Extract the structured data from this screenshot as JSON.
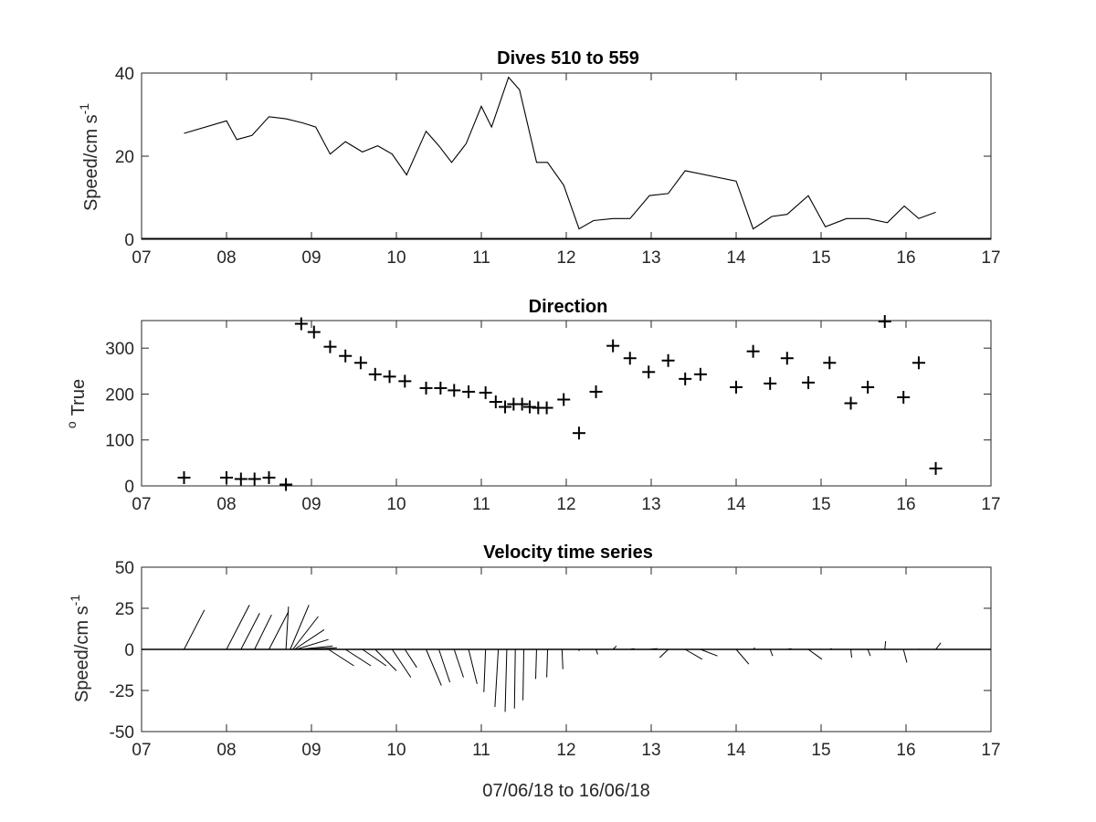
{
  "chart_data": [
    {
      "type": "line",
      "title": "Dives 510 to 559",
      "ylabel": "Speed/cm s",
      "ylabel_superscript": "-1",
      "xlabel": "",
      "xlim": [
        7,
        17
      ],
      "ylim": [
        0,
        40
      ],
      "xticks": [
        "07",
        "08",
        "09",
        "10",
        "11",
        "12",
        "13",
        "14",
        "15",
        "16",
        "17"
      ],
      "yticks": [
        "0",
        "20",
        "40"
      ],
      "grid": false,
      "series": [
        {
          "x": [
            7.5,
            8.0,
            8.12,
            8.3,
            8.5,
            8.7,
            8.9,
            9.05,
            9.22,
            9.4,
            9.6,
            9.78,
            9.95,
            10.12,
            10.35,
            10.5,
            10.65,
            10.82,
            11.0,
            11.12,
            11.32,
            11.45,
            11.65,
            11.78,
            11.97,
            12.15,
            12.32,
            12.55,
            12.75,
            12.98,
            13.2,
            13.4,
            14.0,
            14.2,
            14.42,
            14.6,
            14.85,
            15.05,
            15.3,
            15.55,
            15.78,
            15.98,
            16.15,
            16.35
          ],
          "y": [
            25.5,
            28.5,
            24,
            25,
            29.5,
            29,
            28,
            27,
            20.5,
            23.5,
            21,
            22.5,
            20.5,
            15.5,
            26,
            22.5,
            18.5,
            23,
            32,
            27,
            39,
            36,
            18.5,
            18.5,
            13,
            2.5,
            4.5,
            5,
            5,
            10.5,
            11,
            16.5,
            14,
            2.5,
            5.5,
            6,
            10.5,
            3,
            5,
            5,
            4,
            8,
            5,
            6.5
          ]
        }
      ]
    },
    {
      "type": "scatter",
      "title": "Direction",
      "ylabel": "True",
      "ylabel_superscript": "o",
      "xlabel": "",
      "xlim": [
        7,
        17
      ],
      "ylim": [
        0,
        360
      ],
      "xticks": [
        "07",
        "08",
        "09",
        "10",
        "11",
        "12",
        "13",
        "14",
        "15",
        "16",
        "17"
      ],
      "yticks": [
        "0",
        "100",
        "200",
        "300"
      ],
      "grid": false,
      "marker": "+",
      "series": [
        {
          "x": [
            7.5,
            8.0,
            8.17,
            8.33,
            8.5,
            8.7,
            8.88,
            9.03,
            9.22,
            9.4,
            9.58,
            9.75,
            9.92,
            10.1,
            10.35,
            10.52,
            10.68,
            10.85,
            11.05,
            11.17,
            11.28,
            11.38,
            11.48,
            11.57,
            11.67,
            11.77,
            11.97,
            12.15,
            12.35,
            12.55,
            12.75,
            12.97,
            13.2,
            13.4,
            13.58,
            14.0,
            14.2,
            14.4,
            14.6,
            14.85,
            15.1,
            15.35,
            15.55,
            15.75,
            15.97,
            16.15,
            16.35
          ],
          "y": [
            18,
            18,
            15,
            15,
            18,
            3,
            353,
            335,
            303,
            283,
            268,
            243,
            238,
            228,
            213,
            213,
            208,
            205,
            203,
            183,
            172,
            178,
            178,
            172,
            170,
            170,
            188,
            115,
            205,
            305,
            278,
            248,
            273,
            233,
            243,
            215,
            293,
            223,
            278,
            225,
            268,
            180,
            215,
            358,
            193,
            268,
            38
          ]
        }
      ]
    },
    {
      "type": "line",
      "subtype": "stick-vector",
      "title": "Velocity time series",
      "ylabel": "Speed/cm s",
      "ylabel_superscript": "-1",
      "xlabel": "07/06/18 to 16/06/18",
      "xlim": [
        7,
        17
      ],
      "ylim": [
        -50,
        50
      ],
      "xticks": [
        "07",
        "08",
        "09",
        "10",
        "11",
        "12",
        "13",
        "14",
        "15",
        "16",
        "17"
      ],
      "yticks": [
        "-50",
        "-25",
        "0",
        "25",
        "50"
      ],
      "grid": false,
      "vectors": [
        {
          "x": 7.5,
          "u": 0.24,
          "v": 24
        },
        {
          "x": 8.0,
          "u": 0.27,
          "v": 27
        },
        {
          "x": 8.17,
          "u": 0.22,
          "v": 22
        },
        {
          "x": 8.33,
          "u": 0.2,
          "v": 21
        },
        {
          "x": 8.5,
          "u": 0.23,
          "v": 23
        },
        {
          "x": 8.7,
          "u": 0.03,
          "v": 26
        },
        {
          "x": 8.75,
          "u": 0.22,
          "v": 27
        },
        {
          "x": 8.78,
          "u": 0.3,
          "v": 20
        },
        {
          "x": 8.8,
          "u": 0.35,
          "v": 12
        },
        {
          "x": 8.82,
          "u": 0.38,
          "v": 6
        },
        {
          "x": 8.85,
          "u": 0.4,
          "v": 2
        },
        {
          "x": 8.88,
          "u": 0.42,
          "v": 1
        },
        {
          "x": 9.2,
          "u": 0.3,
          "v": -10
        },
        {
          "x": 9.4,
          "u": 0.3,
          "v": -10
        },
        {
          "x": 9.6,
          "u": 0.28,
          "v": -10
        },
        {
          "x": 9.75,
          "u": 0.25,
          "v": -13
        },
        {
          "x": 9.95,
          "u": 0.22,
          "v": -17
        },
        {
          "x": 10.1,
          "u": 0.14,
          "v": -11
        },
        {
          "x": 10.35,
          "u": 0.18,
          "v": -22
        },
        {
          "x": 10.5,
          "u": 0.13,
          "v": -20
        },
        {
          "x": 10.68,
          "u": 0.11,
          "v": -17
        },
        {
          "x": 10.85,
          "u": 0.1,
          "v": -21
        },
        {
          "x": 11.05,
          "u": -0.02,
          "v": -26
        },
        {
          "x": 11.2,
          "u": -0.04,
          "v": -35
        },
        {
          "x": 11.3,
          "u": -0.02,
          "v": -38
        },
        {
          "x": 11.4,
          "u": -0.01,
          "v": -36
        },
        {
          "x": 11.5,
          "u": -0.01,
          "v": -31
        },
        {
          "x": 11.65,
          "u": -0.01,
          "v": -18
        },
        {
          "x": 11.78,
          "u": -0.01,
          "v": -17
        },
        {
          "x": 11.95,
          "u": 0.01,
          "v": -12
        },
        {
          "x": 12.15,
          "u": 0.0,
          "v": -1
        },
        {
          "x": 12.35,
          "u": 0.02,
          "v": -3
        },
        {
          "x": 12.55,
          "u": 0.04,
          "v": 2
        },
        {
          "x": 12.75,
          "u": 0.05,
          "v": 0.5
        },
        {
          "x": 12.97,
          "u": 0.1,
          "v": 0.5
        },
        {
          "x": 13.2,
          "u": -0.1,
          "v": -5
        },
        {
          "x": 13.4,
          "u": 0.2,
          "v": -6
        },
        {
          "x": 13.58,
          "u": 0.2,
          "v": -4
        },
        {
          "x": 14.0,
          "u": 0.15,
          "v": -9
        },
        {
          "x": 14.2,
          "u": 0.02,
          "v": 1
        },
        {
          "x": 14.4,
          "u": 0.03,
          "v": -4
        },
        {
          "x": 14.6,
          "u": 0.05,
          "v": 0.5
        },
        {
          "x": 14.85,
          "u": 0.16,
          "v": -6
        },
        {
          "x": 15.1,
          "u": 0.03,
          "v": 0.5
        },
        {
          "x": 15.35,
          "u": 0.01,
          "v": -5
        },
        {
          "x": 15.55,
          "u": 0.03,
          "v": -4
        },
        {
          "x": 15.75,
          "u": 0.01,
          "v": 5
        },
        {
          "x": 15.97,
          "u": 0.04,
          "v": -8
        },
        {
          "x": 16.15,
          "u": 0.01,
          "v": 0.2
        },
        {
          "x": 16.35,
          "u": 0.06,
          "v": 4
        }
      ]
    }
  ]
}
